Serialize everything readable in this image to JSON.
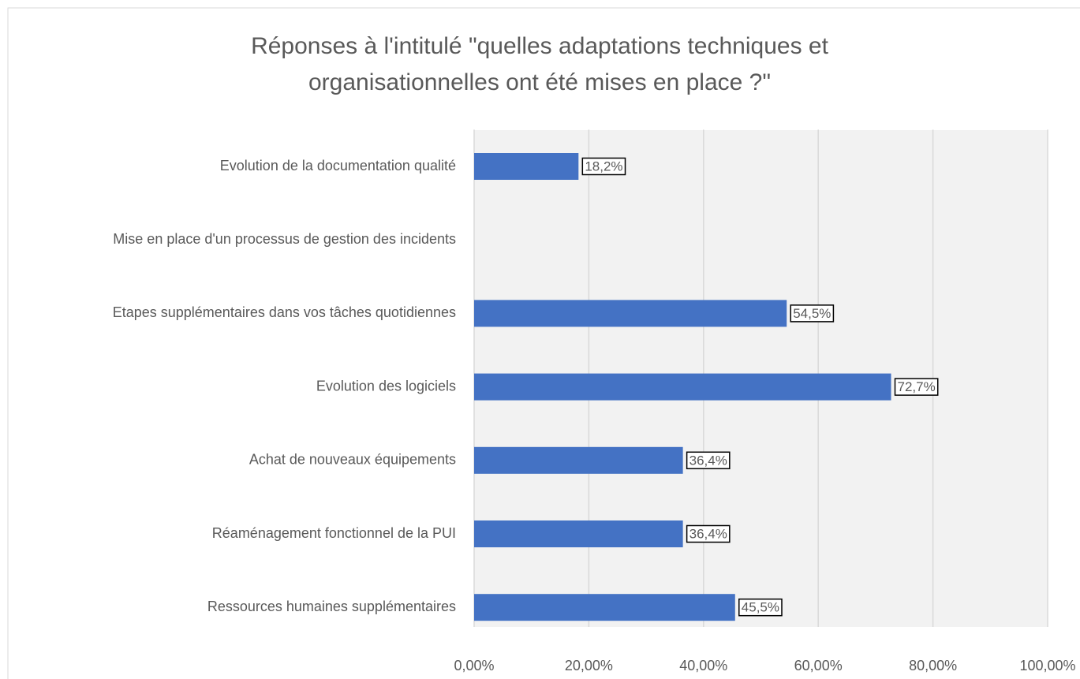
{
  "chart_data": {
    "type": "bar",
    "orientation": "horizontal",
    "title": [
      "Réponses à l'intitulé \"quelles adaptations techniques et",
      "organisationnelles ont été mises en place ?\""
    ],
    "categories": [
      "Evolution de la documentation qualité",
      "Mise en place d'un processus de gestion des incidents",
      "Etapes supplémentaires dans vos tâches quotidiennes",
      "Evolution des logiciels",
      "Achat de nouveaux équipements",
      "Réaménagement fonctionnel de la PUI",
      "Ressources humaines supplémentaires"
    ],
    "values": [
      18.2,
      null,
      54.5,
      72.7,
      36.4,
      36.4,
      45.5
    ],
    "value_labels": [
      "18,2%",
      null,
      "54,5%",
      "72,7%",
      "36,4%",
      "36,4%",
      "45,5%"
    ],
    "color": "#4472c4",
    "xlim": [
      0,
      100
    ],
    "xticks": [
      {
        "value": 0,
        "label": "0,00%"
      },
      {
        "value": 20,
        "label": "20,00%"
      },
      {
        "value": 40,
        "label": "40,00%"
      },
      {
        "value": 60,
        "label": "60,00%"
      },
      {
        "value": 80,
        "label": "80,00%"
      },
      {
        "value": 100,
        "label": "100,00%"
      }
    ],
    "grid": true
  }
}
